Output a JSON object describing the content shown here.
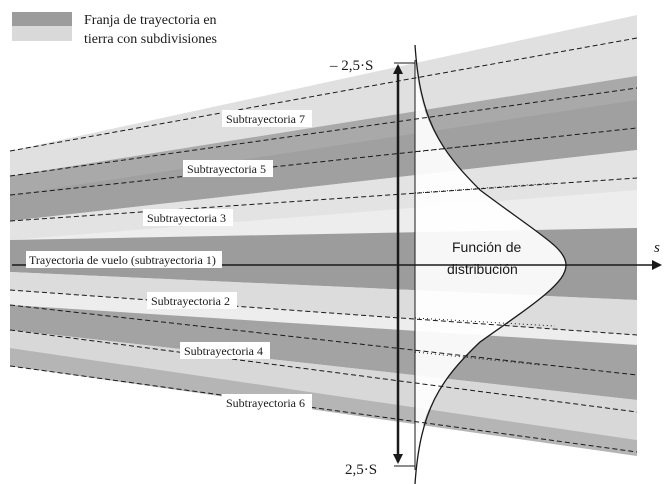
{
  "legend": {
    "line1": "Franja de trayectoria en",
    "line2": "tierra con subdivisiones"
  },
  "labels": {
    "top_limit": "– 2,5·S",
    "bottom_limit": "2,5·S",
    "axis_s": "s",
    "distribution_line1": "Función de",
    "distribution_line2": "distribución"
  },
  "subtracks": [
    {
      "name": "sub7",
      "text": "Subtrayectoria 7"
    },
    {
      "name": "sub5",
      "text": "Subtrayectoria 5"
    },
    {
      "name": "sub3",
      "text": "Subtrayectoria 3"
    },
    {
      "name": "sub1",
      "text": "Trayectoria de vuelo (subtrayectoria 1)"
    },
    {
      "name": "sub2",
      "text": "Subtrayectoria 2"
    },
    {
      "name": "sub4",
      "text": "Subtrayectoria 4"
    },
    {
      "name": "sub6",
      "text": "Subtrayectoria 6"
    }
  ],
  "colors": {
    "band_dark": "#9a9a9a",
    "band_light": "#d9d9d9",
    "band_lightest": "#ebebeb",
    "line": "#1a1a1a",
    "background": "#ffffff"
  }
}
